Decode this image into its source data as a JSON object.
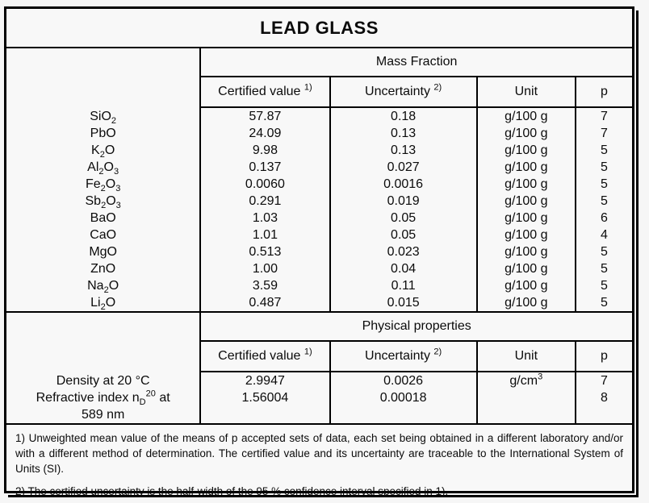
{
  "title": "LEAD GLASS",
  "colors": {
    "background": "#f8f8f8",
    "lines": "#000000",
    "text": "#0b0b0b"
  },
  "column_headers": {
    "certified_html": "Certified value <sup>1)</sup>",
    "uncertainty_html": "Uncertainty <sup>2)</sup>",
    "unit": "Unit",
    "p": "p"
  },
  "mass_fraction": {
    "section_label": "Mass Fraction",
    "rows": [
      {
        "component_html": "SiO<sub>2</sub>",
        "certified": "57.87",
        "uncertainty": "0.18",
        "unit": "g/100 g",
        "p": "7"
      },
      {
        "component_html": "PbO",
        "certified": "24.09",
        "uncertainty": "0.13",
        "unit": "g/100 g",
        "p": "7"
      },
      {
        "component_html": "K<sub>2</sub>O",
        "certified": "9.98",
        "uncertainty": "0.13",
        "unit": "g/100 g",
        "p": "5"
      },
      {
        "component_html": "Al<sub>2</sub>O<sub>3</sub>",
        "certified": "0.137",
        "uncertainty": "0.027",
        "unit": "g/100 g",
        "p": "5"
      },
      {
        "component_html": "Fe<sub>2</sub>O<sub>3</sub>",
        "certified": "0.0060",
        "uncertainty": "0.0016",
        "unit": "g/100 g",
        "p": "5"
      },
      {
        "component_html": "Sb<sub>2</sub>O<sub>3</sub>",
        "certified": "0.291",
        "uncertainty": "0.019",
        "unit": "g/100 g",
        "p": "5"
      },
      {
        "component_html": "BaO",
        "certified": "1.03",
        "uncertainty": "0.05",
        "unit": "g/100 g",
        "p": "6"
      },
      {
        "component_html": "CaO",
        "certified": "1.01",
        "uncertainty": "0.05",
        "unit": "g/100 g",
        "p": "4"
      },
      {
        "component_html": "MgO",
        "certified": "0.513",
        "uncertainty": "0.023",
        "unit": "g/100 g",
        "p": "5"
      },
      {
        "component_html": "ZnO",
        "certified": "1.00",
        "uncertainty": "0.04",
        "unit": "g/100 g",
        "p": "5"
      },
      {
        "component_html": "Na<sub>2</sub>O",
        "certified": "3.59",
        "uncertainty": "0.11",
        "unit": "g/100 g",
        "p": "5"
      },
      {
        "component_html": "Li<sub>2</sub>O",
        "certified": "0.487",
        "uncertainty": "0.015",
        "unit": "g/100 g",
        "p": "5"
      }
    ]
  },
  "physical_properties": {
    "section_label": "Physical properties",
    "rows": [
      {
        "property_html": "Density at 20 °C",
        "certified": "2.9947",
        "uncertainty": "0.0026",
        "unit_html": "g/cm<sup>3</sup>",
        "p": "7"
      },
      {
        "property_html": "Refractive index n<sub>D</sub><sup>20</sup> at<br>589 nm",
        "certified": "1.56004",
        "uncertainty": "0.00018",
        "unit_html": "",
        "p": "8"
      }
    ]
  },
  "footnotes": [
    "1) Unweighted mean value of the means of p accepted sets of data, each set being obtained in a different laboratory and/or with a different method of determination. The certified value and its uncertainty are traceable to the International System of Units (SI).",
    "2) The certified uncertainty is the half-width of the 95 % confidence interval specified in 1)."
  ]
}
